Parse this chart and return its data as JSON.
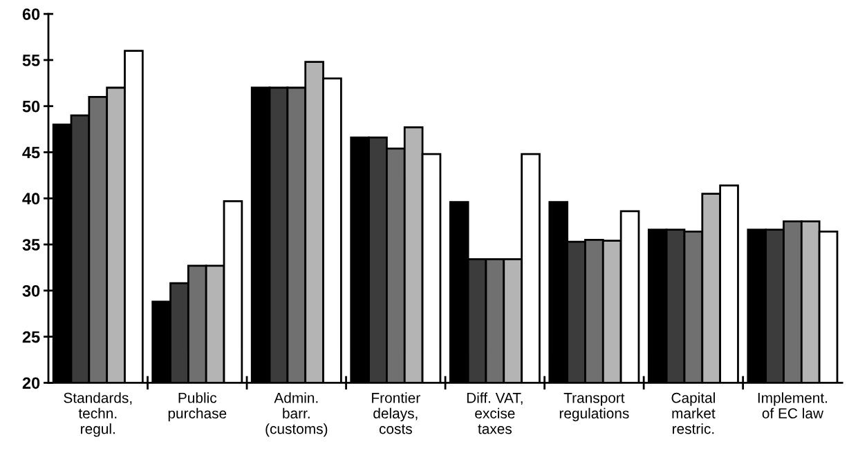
{
  "chart_data": {
    "type": "bar",
    "categories": [
      "Standards,\ntechn.\nregul.",
      "Public\npurchase",
      "Admin.\nbarr.\n(customs)",
      "Frontier\ndelays,\ncosts",
      "Diff. VAT,\nexcise\ntaxes",
      "Transport\nregulations",
      "Capital\nmarket\nrestric.",
      "Implement.\nof EC law"
    ],
    "series": [
      {
        "color": "#000000",
        "values": [
          48,
          28.8,
          52,
          46.6,
          39.6,
          39.6,
          36.6,
          36.6
        ]
      },
      {
        "color": "#3c3c3c",
        "values": [
          49,
          30.8,
          52,
          46.6,
          33.4,
          35.3,
          36.6,
          36.6
        ]
      },
      {
        "color": "#707070",
        "values": [
          51,
          32.7,
          52,
          45.4,
          33.4,
          35.5,
          36.4,
          37.5
        ]
      },
      {
        "color": "#b4b4b4",
        "values": [
          52,
          32.7,
          54.8,
          47.7,
          33.4,
          35.4,
          40.5,
          37.5
        ]
      },
      {
        "color": "#ffffff",
        "values": [
          56,
          39.7,
          53,
          44.8,
          44.8,
          38.6,
          41.4,
          36.4
        ]
      }
    ],
    "ylim": [
      20,
      60
    ],
    "yticks": [
      20,
      25,
      30,
      35,
      40,
      45,
      50,
      55,
      60
    ],
    "grid": false,
    "legend": false
  }
}
